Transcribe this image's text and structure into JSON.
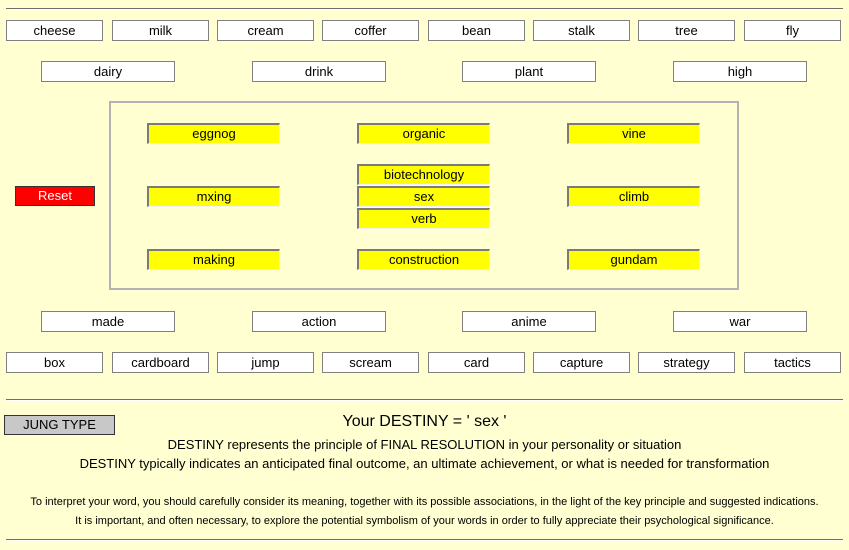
{
  "top_words": [
    "cheese",
    "milk",
    "cream",
    "coffer",
    "bean",
    "stalk",
    "tree",
    "fly"
  ],
  "upper_categories": [
    "dairy",
    "drink",
    "plant",
    "high"
  ],
  "inner": {
    "top_row": [
      "eggnog",
      "organic",
      "vine"
    ],
    "middle_row": [
      "mxing",
      "biotechnology",
      "sex",
      "verb",
      "climb"
    ],
    "bottom_row": [
      "making",
      "construction",
      "gundam"
    ]
  },
  "lower_categories": [
    "made",
    "action",
    "anime",
    "war"
  ],
  "bottom_words": [
    "box",
    "cardboard",
    "jump",
    "scream",
    "card",
    "capture",
    "strategy",
    "tactics"
  ],
  "reset_label": "Reset",
  "jung_label": "JUNG TYPE",
  "result": {
    "destiny_line": "Your DESTINY = ' sex '",
    "line1": "DESTINY represents the principle of FINAL RESOLUTION in your personality or situation",
    "line2": "DESTINY typically indicates an anticipated final outcome, an ultimate achievement, or what is needed for transformation",
    "note1": "To interpret your word, you should carefully consider its meaning, together with its possible associations, in the light of the key principle and suggested indications.",
    "note2": "It is important, and often necessary, to explore the potential symbolism of your words in order to fully appreciate their psychological significance."
  }
}
